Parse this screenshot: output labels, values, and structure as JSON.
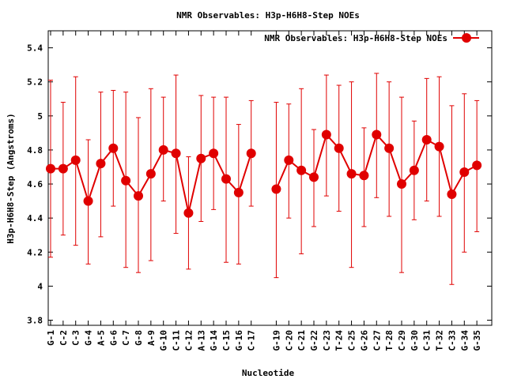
{
  "chart_data": {
    "type": "line",
    "title": "NMR Observables: H3p-H6H8-Step NOEs",
    "xlabel": "Nucleotide",
    "ylabel": "H3p-H6H8-Step (Angstroms)",
    "ylim": [
      3.77,
      5.5
    ],
    "yticks": [
      "3.8",
      "4",
      "4.2",
      "4.4",
      "4.6",
      "4.8",
      "5",
      "5.2",
      "5.4"
    ],
    "ytick_values": [
      3.8,
      4.0,
      4.2,
      4.4,
      4.6,
      4.8,
      5.0,
      5.2,
      5.4
    ],
    "xlim": [
      0,
      35
    ],
    "grid": false,
    "legend_position": "top-right",
    "series": [
      {
        "name": "NMR Observables: H3p-H6H8-Step NOEs",
        "color": "#e00000",
        "marker": "circle"
      }
    ],
    "points": [
      {
        "x": 0,
        "label": "G-1",
        "value": 4.69,
        "err_low": 4.17,
        "err_high": 5.21
      },
      {
        "x": 1,
        "label": "C-2",
        "value": 4.69,
        "err_low": 4.3,
        "err_high": 5.08
      },
      {
        "x": 2,
        "label": "C-3",
        "value": 4.74,
        "err_low": 4.24,
        "err_high": 5.23
      },
      {
        "x": 3,
        "label": "G-4",
        "value": 4.5,
        "err_low": 4.13,
        "err_high": 4.86
      },
      {
        "x": 4,
        "label": "A-5",
        "value": 4.72,
        "err_low": 4.29,
        "err_high": 5.14
      },
      {
        "x": 5,
        "label": "G-6",
        "value": 4.81,
        "err_low": 4.47,
        "err_high": 5.15
      },
      {
        "x": 6,
        "label": "C-7",
        "value": 4.62,
        "err_low": 4.11,
        "err_high": 5.14
      },
      {
        "x": 7,
        "label": "G-8",
        "value": 4.53,
        "err_low": 4.08,
        "err_high": 4.99
      },
      {
        "x": 8,
        "label": "A-9",
        "value": 4.66,
        "err_low": 4.15,
        "err_high": 5.16
      },
      {
        "x": 9,
        "label": "G-10",
        "value": 4.8,
        "err_low": 4.5,
        "err_high": 5.11
      },
      {
        "x": 10,
        "label": "C-11",
        "value": 4.78,
        "err_low": 4.31,
        "err_high": 5.24
      },
      {
        "x": 11,
        "label": "C-12",
        "value": 4.43,
        "err_low": 4.1,
        "err_high": 4.76
      },
      {
        "x": 12,
        "label": "A-13",
        "value": 4.75,
        "err_low": 4.38,
        "err_high": 5.12
      },
      {
        "x": 13,
        "label": "G-14",
        "value": 4.78,
        "err_low": 4.45,
        "err_high": 5.11
      },
      {
        "x": 14,
        "label": "C-15",
        "value": 4.63,
        "err_low": 4.14,
        "err_high": 5.11
      },
      {
        "x": 15,
        "label": "G-16",
        "value": 4.55,
        "err_low": 4.13,
        "err_high": 4.95
      },
      {
        "x": 16,
        "label": "C-17",
        "value": 4.78,
        "err_low": 4.47,
        "err_high": 5.09
      },
      {
        "x": 18,
        "label": "G-19",
        "value": 4.57,
        "err_low": 4.05,
        "err_high": 5.08
      },
      {
        "x": 19,
        "label": "C-20",
        "value": 4.74,
        "err_low": 4.4,
        "err_high": 5.07
      },
      {
        "x": 20,
        "label": "C-21",
        "value": 4.68,
        "err_low": 4.19,
        "err_high": 5.16
      },
      {
        "x": 21,
        "label": "G-22",
        "value": 4.64,
        "err_low": 4.35,
        "err_high": 4.92
      },
      {
        "x": 22,
        "label": "C-23",
        "value": 4.89,
        "err_low": 4.53,
        "err_high": 5.24
      },
      {
        "x": 23,
        "label": "T-24",
        "value": 4.81,
        "err_low": 4.44,
        "err_high": 5.18
      },
      {
        "x": 24,
        "label": "C-25",
        "value": 4.66,
        "err_low": 4.11,
        "err_high": 5.2
      },
      {
        "x": 25,
        "label": "G-26",
        "value": 4.65,
        "err_low": 4.35,
        "err_high": 4.93
      },
      {
        "x": 26,
        "label": "C-27",
        "value": 4.89,
        "err_low": 4.52,
        "err_high": 5.25
      },
      {
        "x": 27,
        "label": "T-28",
        "value": 4.81,
        "err_low": 4.41,
        "err_high": 5.2
      },
      {
        "x": 28,
        "label": "C-29",
        "value": 4.6,
        "err_low": 4.08,
        "err_high": 5.11
      },
      {
        "x": 29,
        "label": "G-30",
        "value": 4.68,
        "err_low": 4.39,
        "err_high": 4.97
      },
      {
        "x": 30,
        "label": "C-31",
        "value": 4.86,
        "err_low": 4.5,
        "err_high": 5.22
      },
      {
        "x": 31,
        "label": "T-32",
        "value": 4.82,
        "err_low": 4.41,
        "err_high": 5.23
      },
      {
        "x": 32,
        "label": "C-33",
        "value": 4.54,
        "err_low": 4.01,
        "err_high": 5.06
      },
      {
        "x": 33,
        "label": "G-34",
        "value": 4.67,
        "err_low": 4.2,
        "err_high": 5.13
      },
      {
        "x": 34,
        "label": "G-35",
        "value": 4.71,
        "err_low": 4.32,
        "err_high": 5.09
      }
    ]
  }
}
